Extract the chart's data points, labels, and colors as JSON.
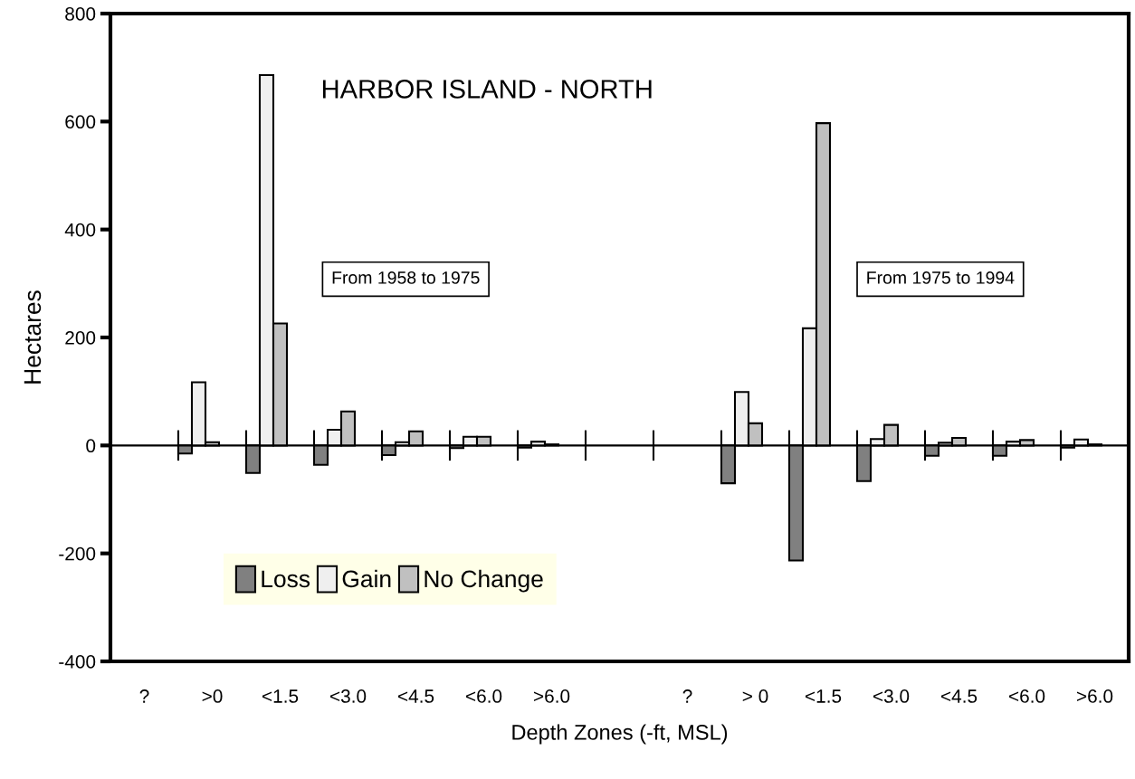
{
  "chart_data": {
    "type": "bar",
    "title": "HARBOR ISLAND - NORTH",
    "xlabel": "Depth Zones (-ft, MSL)",
    "ylabel": "Hectares",
    "categories": [
      "?",
      ">0",
      "<1.5",
      "<3.0",
      "<4.5",
      "<6.0",
      ">6.0",
      null,
      "?",
      "> 0",
      "<1.5",
      "<3.0",
      "<4.5",
      "<6.0",
      ">6.0"
    ],
    "series": [
      {
        "name": "Loss",
        "color": "#808080",
        "values": [
          null,
          -15,
          -51,
          -36,
          -18,
          -5,
          -4,
          null,
          null,
          -70,
          -213,
          -66,
          -19,
          -19,
          -4
        ]
      },
      {
        "name": "Gain",
        "color": "#efefef",
        "values": [
          null,
          117,
          686,
          29,
          6,
          16,
          7,
          null,
          null,
          99,
          217,
          12,
          5,
          7,
          11
        ]
      },
      {
        "name": "No Change",
        "color": "#c0c0c0",
        "values": [
          null,
          6,
          226,
          63,
          26,
          16,
          2,
          null,
          null,
          41,
          597,
          38,
          14,
          10,
          2
        ]
      }
    ],
    "ylim": [
      -400,
      800
    ],
    "yticks": [
      -400,
      -200,
      0,
      200,
      400,
      600,
      800
    ],
    "ref_lines": [
      {
        "axis": "y",
        "value": 0,
        "color": "#000000"
      }
    ],
    "annotations": [
      "From 1958 to 1975",
      "From 1975 to 1994"
    ],
    "legend": "bottom left",
    "grid": false
  }
}
